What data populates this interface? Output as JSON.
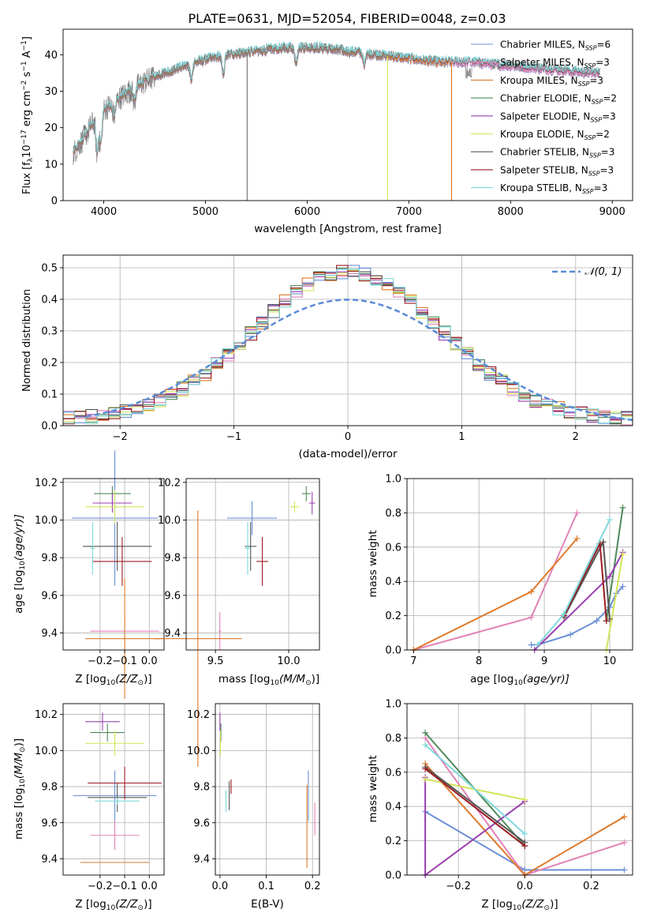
{
  "colors": {
    "c0": "#6b8fd8",
    "c1": "#e283b8",
    "c2": "#dd7a2b",
    "c3": "#4d8a5a",
    "c4": "#9b3fb0",
    "c5": "#d4e35a",
    "c6": "#555555",
    "c7": "#9b1b22",
    "c8": "#7fd9dc",
    "grid": "#b0b0b0",
    "normal": "#5b8bd6",
    "spectrum_gray": "#7a7a7a"
  },
  "chart_data": [
    {
      "type": "line",
      "title": "PLATE=0631, MJD=52054, FIBERID=0048, z=0.03",
      "xlabel": "wavelength [Angstrom, rest frame]",
      "ylabel": "Flux [f_λ 10^-17 erg cm^-2 s^-1 A^-1]",
      "xlim": [
        3600,
        9200
      ],
      "ylim": [
        0,
        47
      ],
      "xticks": [
        4000,
        5000,
        6000,
        7000,
        8000,
        9000
      ],
      "yticks": [
        0,
        10,
        20,
        30,
        40
      ],
      "legend_position": "upper right",
      "series": [
        {
          "name": "Chabrier MILES, N_SSP=6",
          "legend_main": "Chabrier MILES, N",
          "legend_sub": "SSP",
          "legend_tail": "=6",
          "color": "c0",
          "range": [
            3700,
            8880
          ]
        },
        {
          "name": "Salpeter MILES, N_SSP=3",
          "legend_main": "Salpeter MILES, N",
          "legend_sub": "SSP",
          "legend_tail": "=3",
          "color": "c1",
          "range": [
            3700,
            8880
          ]
        },
        {
          "name": "Kroupa MILES, N_SSP=3",
          "legend_main": "Kroupa MILES, N",
          "legend_sub": "SSP",
          "legend_tail": "=3",
          "color": "c2",
          "range": [
            3700,
            7420
          ]
        },
        {
          "name": "Chabrier ELODIE, N_SSP=2",
          "legend_main": "Chabrier ELODIE, N",
          "legend_sub": "SSP",
          "legend_tail": "=2",
          "color": "c3",
          "range": [
            3700,
            6790
          ]
        },
        {
          "name": "Salpeter ELODIE, N_SSP=3",
          "legend_main": "Salpeter ELODIE, N",
          "legend_sub": "SSP",
          "legend_tail": "=3",
          "color": "c4",
          "range": [
            3700,
            6790
          ]
        },
        {
          "name": "Kroupa ELODIE, N_SSP=2",
          "legend_main": "Kroupa ELODIE, N",
          "legend_sub": "SSP",
          "legend_tail": "=2",
          "color": "c5",
          "range": [
            3700,
            6790
          ]
        },
        {
          "name": "Chabrier STELIB, N_SSP=3",
          "legend_main": "Chabrier STELIB, N",
          "legend_sub": "SSP",
          "legend_tail": "=3",
          "color": "c6",
          "range": [
            3700,
            8880
          ]
        },
        {
          "name": "Salpeter STELIB, N_SSP=3",
          "legend_main": "Salpeter STELIB, N",
          "legend_sub": "SSP",
          "legend_tail": "=3",
          "color": "c7",
          "range": [
            3700,
            8880
          ]
        },
        {
          "name": "Kroupa STELIB, N_SSP=3",
          "legend_main": "Kroupa STELIB, N",
          "legend_sub": "SSP",
          "legend_tail": "=3",
          "color": "c8",
          "range": [
            3700,
            8880
          ]
        }
      ],
      "continuum": [
        [
          3700,
          13
        ],
        [
          3800,
          17
        ],
        [
          3950,
          24
        ],
        [
          4100,
          27
        ],
        [
          4300,
          31
        ],
        [
          4500,
          34
        ],
        [
          4700,
          36
        ],
        [
          4900,
          38
        ],
        [
          5200,
          40
        ],
        [
          5500,
          41
        ],
        [
          5800,
          42
        ],
        [
          6100,
          42
        ],
        [
          6400,
          41
        ],
        [
          6700,
          40
        ],
        [
          7000,
          39
        ],
        [
          7300,
          38
        ],
        [
          7600,
          38
        ],
        [
          8000,
          37
        ],
        [
          8400,
          36
        ],
        [
          8800,
          35
        ],
        [
          8880,
          35
        ]
      ],
      "glitches": [
        {
          "x": 5410,
          "series": "spectrum",
          "to": 0
        },
        {
          "x": 6790,
          "series": "c5",
          "to": 0
        },
        {
          "x": 7420,
          "series": "c2",
          "to": 0
        }
      ]
    },
    {
      "type": "histogram",
      "xlabel": "(data-model)/error",
      "ylabel": "Normed distribution",
      "xlim": [
        -2.5,
        2.5
      ],
      "ylim": [
        0,
        0.54
      ],
      "xticks": [
        -2,
        -1,
        0,
        1,
        2
      ],
      "yticks": [
        0.0,
        0.1,
        0.2,
        0.3,
        0.4,
        0.5
      ],
      "grid": true,
      "bin_width": 0.1,
      "legend": {
        "label": "N(0,1)",
        "position": "upper right"
      },
      "normal_curve": {
        "mean": 0,
        "sigma": 1,
        "style": "dashed"
      },
      "series_colors": [
        "c0",
        "c1",
        "c2",
        "c3",
        "c4",
        "c5",
        "c6",
        "c7",
        "c8"
      ]
    },
    {
      "type": "scatter-errorbar",
      "xlabel": "Z [log10(Z/Z⊙)]",
      "ylabel": "age [log10(age/yr)]",
      "xlim": [
        -0.35,
        0.06
      ],
      "ylim": [
        9.31,
        10.22
      ],
      "xticks": [
        -0.2,
        -0.1,
        0.0
      ],
      "yticks": [
        9.4,
        9.6,
        9.8,
        10.0,
        10.2
      ],
      "grid": true,
      "points": [
        {
          "color": "c0",
          "x": -0.14,
          "xerr": 0.175,
          "y": 10.01,
          "yerr": 0.36
        },
        {
          "color": "c1",
          "x": -0.1,
          "xerr": 0.14,
          "y": 9.41,
          "yerr": 0.08
        },
        {
          "color": "c2",
          "x": -0.1,
          "xerr": 0.16,
          "y": 9.37,
          "yerr": 0.32
        },
        {
          "color": "c3",
          "x": -0.15,
          "xerr": 0.075,
          "y": 10.14,
          "yerr": 0.04
        },
        {
          "color": "c4",
          "x": -0.15,
          "xerr": 0.08,
          "y": 10.09,
          "yerr": 0.05
        },
        {
          "color": "c5",
          "x": -0.14,
          "xerr": 0.12,
          "y": 10.07,
          "yerr": 0.09
        },
        {
          "color": "c6",
          "x": -0.13,
          "xerr": 0.14,
          "y": 9.86,
          "yerr": 0.13
        },
        {
          "color": "c7",
          "x": -0.11,
          "xerr": 0.12,
          "y": 9.78,
          "yerr": 0.13
        },
        {
          "color": "c8",
          "x": -0.23,
          "xerr": 0.01,
          "y": 9.85,
          "yerr": 0.14
        }
      ]
    },
    {
      "type": "scatter-errorbar",
      "xlabel": "mass [log10(M/M⊙)]",
      "ylabel": "",
      "xlim": [
        9.3,
        10.21
      ],
      "ylim": [
        9.31,
        10.22
      ],
      "xticks": [
        9.5,
        10.0
      ],
      "yticks": [
        9.4,
        9.6,
        9.8,
        10.0,
        10.2
      ],
      "grid": true,
      "points": [
        {
          "color": "c0",
          "x": 9.75,
          "xerr": 0.17,
          "y": 10.01,
          "yerr": 0.09
        },
        {
          "color": "c1",
          "x": 9.53,
          "xerr": 0.01,
          "y": 9.41,
          "yerr": 0.1
        },
        {
          "color": "c2",
          "x": 9.38,
          "xerr": 0.3,
          "y": 9.37,
          "yerr": 0.68
        },
        {
          "color": "c3",
          "x": 10.12,
          "xerr": 0.03,
          "y": 10.14,
          "yerr": 0.04
        },
        {
          "color": "c4",
          "x": 10.16,
          "xerr": 0.02,
          "y": 10.09,
          "yerr": 0.06
        },
        {
          "color": "c5",
          "x": 10.04,
          "xerr": 0.03,
          "y": 10.07,
          "yerr": 0.03
        },
        {
          "color": "c6",
          "x": 9.74,
          "xerr": 0.04,
          "y": 9.86,
          "yerr": 0.13
        },
        {
          "color": "c7",
          "x": 9.82,
          "xerr": 0.04,
          "y": 9.78,
          "yerr": 0.13
        },
        {
          "color": "c8",
          "x": 9.72,
          "xerr": 0.02,
          "y": 9.85,
          "yerr": 0.14
        }
      ]
    },
    {
      "type": "line",
      "xlabel": "age [log10(age/yr)]",
      "ylabel": "mass weight",
      "xlim": [
        6.9,
        10.35
      ],
      "ylim": [
        0,
        1.0
      ],
      "xticks": [
        7,
        8,
        9,
        10
      ],
      "yticks": [
        0.0,
        0.2,
        0.4,
        0.6,
        0.8,
        1.0
      ],
      "grid": true,
      "series": [
        {
          "color": "c0",
          "points": [
            [
              8.8,
              0.03
            ],
            [
              8.9,
              0.03
            ],
            [
              9.4,
              0.09
            ],
            [
              9.8,
              0.17
            ],
            [
              10.0,
              0.25
            ],
            [
              10.1,
              0.33
            ],
            [
              10.2,
              0.37
            ]
          ]
        },
        {
          "color": "c1",
          "points": [
            [
              7.0,
              0.0
            ],
            [
              8.8,
              0.19
            ],
            [
              9.5,
              0.8
            ]
          ]
        },
        {
          "color": "c2",
          "points": [
            [
              7.0,
              0.0
            ],
            [
              8.8,
              0.34
            ],
            [
              9.5,
              0.65
            ]
          ]
        },
        {
          "color": "c3",
          "points": [
            [
              9.95,
              0.17
            ],
            [
              10.2,
              0.83
            ]
          ]
        },
        {
          "color": "c4",
          "points": [
            [
              8.85,
              0.0
            ],
            [
              10.0,
              0.43
            ],
            [
              10.2,
              0.57
            ]
          ]
        },
        {
          "color": "c5",
          "points": [
            [
              9.95,
              0.0
            ],
            [
              10.2,
              0.56
            ]
          ]
        },
        {
          "color": "c6",
          "points": [
            [
              9.3,
              0.19
            ],
            [
              9.9,
              0.63
            ],
            [
              10.0,
              0.18
            ]
          ]
        },
        {
          "color": "c7",
          "points": [
            [
              9.3,
              0.2
            ],
            [
              9.85,
              0.62
            ],
            [
              9.95,
              0.17
            ]
          ]
        },
        {
          "color": "c8",
          "points": [
            [
              8.9,
              0.03
            ],
            [
              9.3,
              0.21
            ],
            [
              10.0,
              0.76
            ]
          ]
        }
      ]
    },
    {
      "type": "scatter-errorbar",
      "xlabel": "Z [log10(Z/Z⊙)]",
      "ylabel": "mass [log10(M/M⊙)]",
      "xlim": [
        -0.35,
        0.06
      ],
      "ylim": [
        9.31,
        10.26
      ],
      "xticks": [
        -0.2,
        -0.1,
        0.0
      ],
      "yticks": [
        9.4,
        9.6,
        9.8,
        10.0,
        10.2
      ],
      "grid": true,
      "points": [
        {
          "color": "c0",
          "x": -0.14,
          "xerr": 0.17,
          "y": 9.75,
          "yerr": 0.14
        },
        {
          "color": "c1",
          "x": -0.14,
          "xerr": 0.1,
          "y": 9.53,
          "yerr": 0.08
        },
        {
          "color": "c2",
          "x": -0.14,
          "xerr": 0.14,
          "y": 9.38,
          "yerr": 0.0
        },
        {
          "color": "c3",
          "x": -0.17,
          "xerr": 0.07,
          "y": 10.1,
          "yerr": 0.05
        },
        {
          "color": "c4",
          "x": -0.19,
          "xerr": 0.07,
          "y": 10.16,
          "yerr": 0.05
        },
        {
          "color": "c5",
          "x": -0.14,
          "xerr": 0.12,
          "y": 10.04,
          "yerr": 0.07
        },
        {
          "color": "c6",
          "x": -0.13,
          "xerr": 0.12,
          "y": 9.74,
          "yerr": 0.08
        },
        {
          "color": "c7",
          "x": -0.1,
          "xerr": 0.15,
          "y": 9.82,
          "yerr": 0.09
        },
        {
          "color": "c8",
          "x": -0.13,
          "xerr": 0.09,
          "y": 9.72,
          "yerr": 0.02
        }
      ]
    },
    {
      "type": "scatter-errorbar",
      "xlabel": "E(B-V)",
      "ylabel": "",
      "xlim": [
        -0.01,
        0.215
      ],
      "ylim": [
        9.31,
        10.26
      ],
      "xticks": [
        0.0,
        0.1,
        0.2
      ],
      "yticks": [
        9.4,
        9.6,
        9.8,
        10.0,
        10.2
      ],
      "grid": true,
      "points": [
        {
          "color": "c0",
          "x": 0.191,
          "xerr": 0.0,
          "y": 9.75,
          "yerr": 0.14
        },
        {
          "color": "c1",
          "x": 0.205,
          "xerr": 0.0,
          "y": 9.62,
          "yerr": 0.09
        },
        {
          "color": "c2",
          "x": 0.188,
          "xerr": 0.0,
          "y": 9.58,
          "yerr": 0.23
        },
        {
          "color": "c3",
          "x": 0.002,
          "xerr": 0.0,
          "y": 10.1,
          "yerr": 0.05
        },
        {
          "color": "c4",
          "x": 0.0,
          "xerr": 0.0,
          "y": 10.16,
          "yerr": 0.05
        },
        {
          "color": "c5",
          "x": 0.001,
          "xerr": 0.0,
          "y": 10.04,
          "yerr": 0.07
        },
        {
          "color": "c6",
          "x": 0.02,
          "xerr": 0.0,
          "y": 9.75,
          "yerr": 0.08
        },
        {
          "color": "c7",
          "x": 0.024,
          "xerr": 0.0,
          "y": 9.8,
          "yerr": 0.04
        },
        {
          "color": "c8",
          "x": 0.013,
          "xerr": 0.0,
          "y": 9.72,
          "yerr": 0.06
        }
      ]
    },
    {
      "type": "line",
      "xlabel": "Z [log10(Z/Z⊙)]",
      "ylabel": "mass weight",
      "xlim": [
        -0.355,
        0.325
      ],
      "ylim": [
        0,
        1.0
      ],
      "xticks": [
        -0.2,
        0.0,
        0.2
      ],
      "yticks": [
        0.0,
        0.2,
        0.4,
        0.6,
        0.8,
        1.0
      ],
      "grid": true,
      "series": [
        {
          "color": "c0",
          "points": [
            [
              -0.3,
              0.37
            ],
            [
              0.0,
              0.03
            ],
            [
              0.3,
              0.03
            ]
          ]
        },
        {
          "color": "c1",
          "points": [
            [
              -0.3,
              0.8
            ],
            [
              0.0,
              0.0
            ],
            [
              0.3,
              0.19
            ]
          ]
        },
        {
          "color": "c2",
          "points": [
            [
              -0.3,
              0.65
            ],
            [
              0.0,
              0.0
            ],
            [
              0.3,
              0.34
            ]
          ]
        },
        {
          "color": "c3",
          "points": [
            [
              -0.3,
              0.83
            ],
            [
              0.0,
              0.17
            ]
          ]
        },
        {
          "color": "c4",
          "points": [
            [
              -0.3,
              0.57
            ],
            [
              -0.3,
              0.0
            ],
            [
              0.0,
              0.43
            ]
          ]
        },
        {
          "color": "c5",
          "points": [
            [
              -0.3,
              0.56
            ],
            [
              0.0,
              0.44
            ]
          ]
        },
        {
          "color": "c6",
          "points": [
            [
              -0.3,
              0.63
            ],
            [
              0.0,
              0.19
            ]
          ]
        },
        {
          "color": "c7",
          "points": [
            [
              -0.3,
              0.62
            ],
            [
              0.0,
              0.17
            ]
          ]
        },
        {
          "color": "c8",
          "points": [
            [
              -0.3,
              0.76
            ],
            [
              0.0,
              0.24
            ]
          ]
        }
      ]
    }
  ],
  "labels": {
    "title": "PLATE=0631, MJD=52054, FIBERID=0048, z=0.03",
    "spec_xlabel": "wavelength [Angstrom, rest frame]",
    "spec_ylabel_a": "Flux [f",
    "spec_ylabel_b": "λ",
    "spec_ylabel_c": "10",
    "spec_ylabel_d": "−17",
    "spec_ylabel_e": " erg cm",
    "spec_ylabel_f": "−2",
    "spec_ylabel_g": " s",
    "spec_ylabel_h": "−1",
    "spec_ylabel_i": " A",
    "spec_ylabel_j": "−1",
    "spec_ylabel_k": "]",
    "hist_xlabel": "(data-model)/error",
    "hist_ylabel": "Normed distribution",
    "hist_legend": "𝒩(0, 1)",
    "age_label_a": "age  [log",
    "age_label_b": "10",
    "age_label_c": "(age/yr)]",
    "z_label_a": "Z [log",
    "z_label_b": "10",
    "z_label_c": "(Z/Z",
    "z_label_d": "⊙",
    "z_label_e": ")]",
    "mass_label_a": "mass [log",
    "mass_label_b": "10",
    "mass_label_c": "(M/M",
    "mass_label_d": "⊙",
    "mass_label_e": ")]",
    "ebv_label": "E(B-V)",
    "mass_weight": "mass weight"
  }
}
